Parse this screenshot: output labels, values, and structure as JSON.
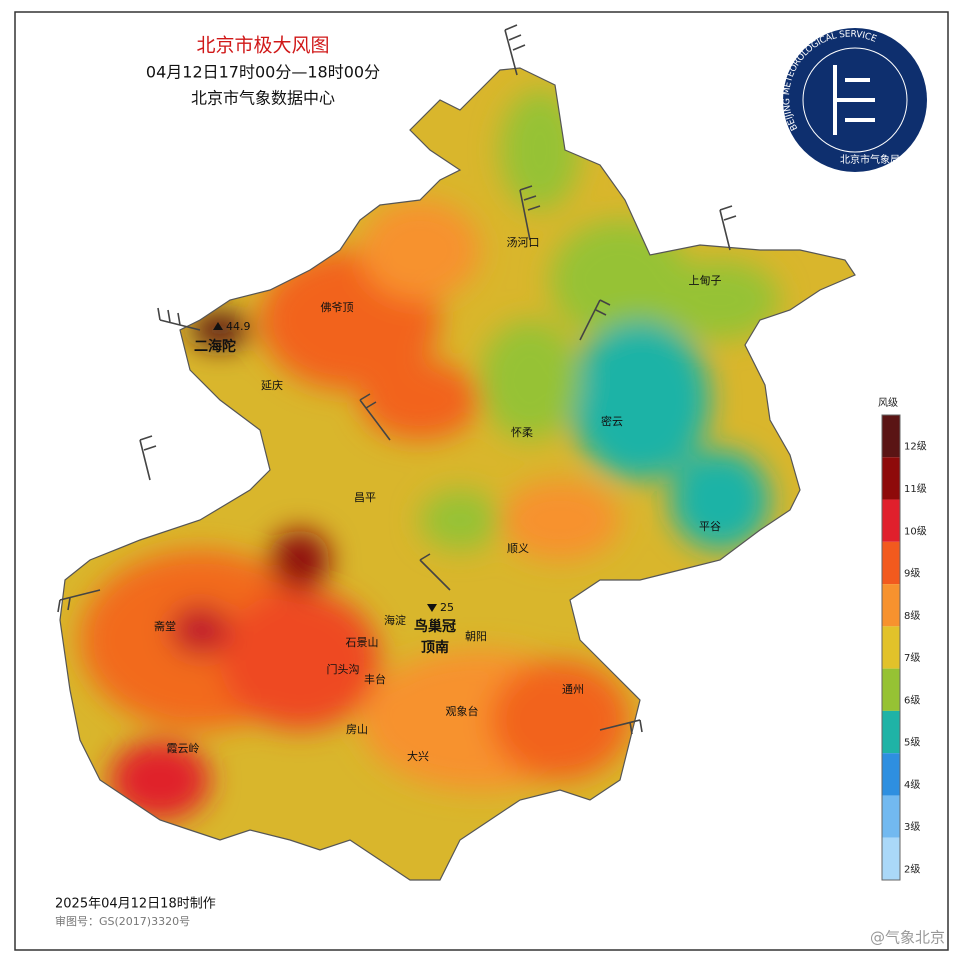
{
  "header": {
    "title": "北京市极大风图",
    "subtitle": "04月12日17时00分—18时00分",
    "source": "北京市气象数据中心"
  },
  "logo": {
    "ring_text": "BEIJING METEOROLOGICAL SERVICE",
    "name": "北京市气象局"
  },
  "legend": {
    "title": "风级",
    "items": [
      {
        "label": "12级",
        "color": "#5a1414"
      },
      {
        "label": "11级",
        "color": "#8e0a0a"
      },
      {
        "label": "10级",
        "color": "#e0202c"
      },
      {
        "label": "9级",
        "color": "#f25a1e"
      },
      {
        "label": "8级",
        "color": "#f7922e"
      },
      {
        "label": "7级",
        "color": "#e2c22a"
      },
      {
        "label": "6级",
        "color": "#96c234"
      },
      {
        "label": "5级",
        "color": "#1fb3a6"
      },
      {
        "label": "4级",
        "color": "#2e8fe0"
      },
      {
        "label": "3级",
        "color": "#72b9f0"
      },
      {
        "label": "2级",
        "color": "#aad8f8"
      }
    ]
  },
  "places": [
    "汤河口",
    "上甸子",
    "佛爷顶",
    "二海陀",
    "延庆",
    "怀柔",
    "密云",
    "昌平",
    "平谷",
    "顺义",
    "海淀",
    "鸟巢冠",
    "顶南",
    "石景山",
    "朝阳",
    "门头沟",
    "丰台",
    "斋堂",
    "通州",
    "观象台",
    "房山",
    "大兴",
    "霞云岭"
  ],
  "stations": [
    "44.9",
    "25"
  ],
  "footer": {
    "made": "2025年04月12日18时制作",
    "review": "审图号：GS(2017)3320号",
    "watermark": "@气象北京"
  }
}
